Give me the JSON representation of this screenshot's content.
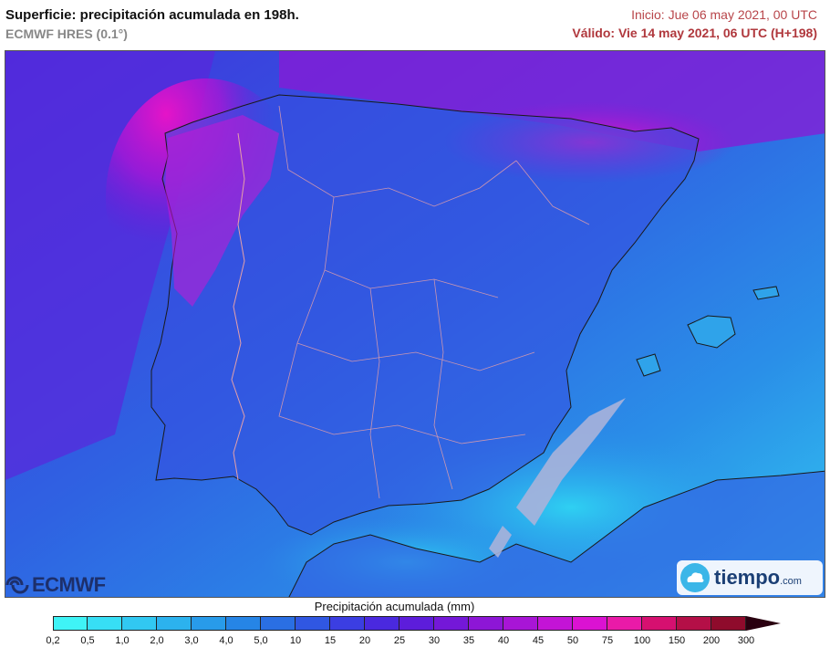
{
  "header": {
    "title": "Superficie: precipitación acumulada en 198h.",
    "model": "ECMWF HRES (0.1°)",
    "init": "Inicio: Jue 06 may 2021, 00 UTC",
    "valid": "Válido: Vie 14 may 2021, 06 UTC (H+198)"
  },
  "logos": {
    "ecmwf": "ECMWF",
    "tiempo": "tiempo",
    "tiempo_suffix": ".com"
  },
  "legend": {
    "title": "Precipitación acumulada (mm)",
    "ticks": [
      "0,2",
      "0,5",
      "1,0",
      "2,0",
      "3,0",
      "4,0",
      "5,0",
      "10",
      "15",
      "20",
      "25",
      "30",
      "35",
      "40",
      "45",
      "50",
      "75",
      "100",
      "150",
      "200",
      "300"
    ],
    "colors": [
      "#3ff3f6",
      "#37def5",
      "#31c8f2",
      "#2cb2ee",
      "#289bea",
      "#2685e6",
      "#2a6fe3",
      "#3057e2",
      "#3b3ee2",
      "#4a29df",
      "#5d1ddb",
      "#7418d8",
      "#8d16d6",
      "#a815d6",
      "#c314d6",
      "#db12d2",
      "#ea1aa8",
      "#d61070",
      "#b40f47",
      "#8f0b2c"
    ],
    "arrow_color": "#2a0010"
  }
}
